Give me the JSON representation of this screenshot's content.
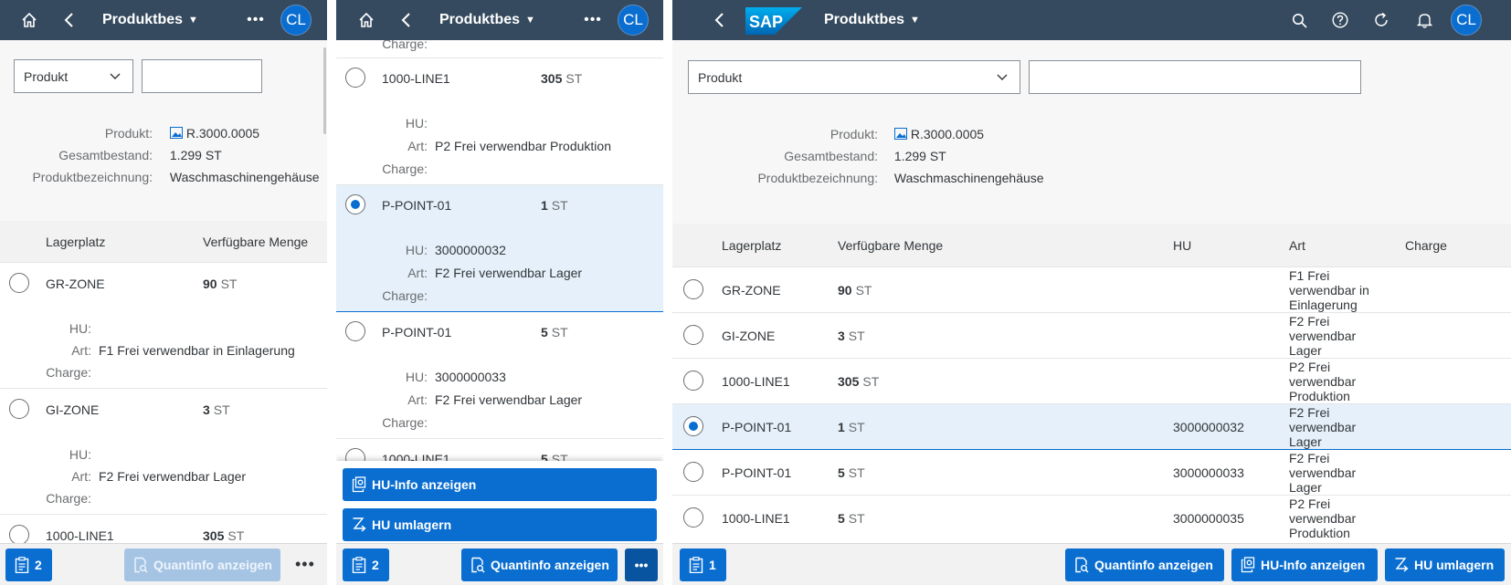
{
  "shell": {
    "app_title": "Produktbes",
    "avatar": "CL",
    "logo_text": "SAP",
    "icons": [
      "home-icon",
      "back-icon",
      "more-icon",
      "search-icon",
      "help-icon",
      "refresh-icon",
      "bell-icon"
    ]
  },
  "filter": {
    "dropdown_value": "Produkt",
    "input_value": ""
  },
  "header": {
    "produkt_label": "Produkt:",
    "produkt_value": "R.3000.0005",
    "gesamt_label": "Gesamtbestand:",
    "gesamt_value": "1.299 ST",
    "bez_label": "Produktbezeichnung:",
    "bez_value": "Waschmaschinengehäuse"
  },
  "table": {
    "columns": {
      "lagerplatz": "Lagerplatz",
      "menge": "Verfügbare Menge",
      "hu": "HU",
      "art": "Art",
      "charge": "Charge"
    },
    "sub_labels": {
      "hu": "HU:",
      "art": "Art:",
      "charge": "Charge:"
    },
    "rows": [
      {
        "lagerplatz": "GR-ZONE",
        "qty": "90",
        "unit": "ST",
        "hu": "",
        "art": "F1 Frei verwendbar in Einlagerung",
        "charge": ""
      },
      {
        "lagerplatz": "GI-ZONE",
        "qty": "3",
        "unit": "ST",
        "hu": "",
        "art": "F2 Frei verwendbar Lager",
        "charge": ""
      },
      {
        "lagerplatz": "1000-LINE1",
        "qty": "305",
        "unit": "ST",
        "hu": "",
        "art": "P2 Frei verwendbar Produktion",
        "charge": ""
      },
      {
        "lagerplatz": "P-POINT-01",
        "qty": "1",
        "unit": "ST",
        "hu": "3000000032",
        "art": "F2 Frei verwendbar Lager",
        "charge": ""
      },
      {
        "lagerplatz": "P-POINT-01",
        "qty": "5",
        "unit": "ST",
        "hu": "3000000033",
        "art": "F2 Frei verwendbar Lager",
        "charge": ""
      },
      {
        "lagerplatz": "1000-LINE1",
        "qty": "5",
        "unit": "ST",
        "hu": "3000000035",
        "art": "P2 Frei verwendbar Produktion",
        "charge": ""
      }
    ]
  },
  "footer": {
    "count_panel1": "2",
    "count_panel2": "2",
    "count_panel3": "1",
    "quantinfo": "Quantinfo anzeigen",
    "huinfo": "HU-Info anzeigen",
    "umlagern": "HU umlagern",
    "overflow": "•••"
  },
  "colors": {
    "shell": "#354a5f",
    "accent": "#0a6ed1",
    "selected_row": "#e5f0fa"
  }
}
